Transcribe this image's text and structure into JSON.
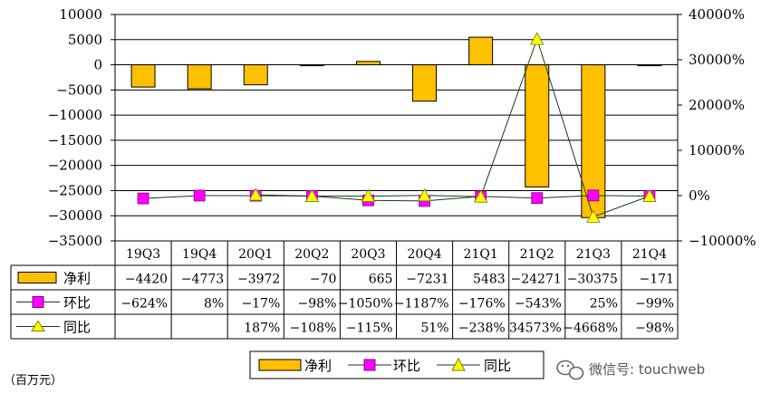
{
  "chart_data": {
    "type": "bar",
    "categories": [
      "19Q3",
      "19Q4",
      "20Q1",
      "20Q2",
      "20Q3",
      "20Q4",
      "21Q1",
      "21Q2",
      "21Q3",
      "21Q4"
    ],
    "series": [
      {
        "name": "净利",
        "kind": "bar",
        "axis": "left",
        "values": [
          -4420,
          -4773,
          -3972,
          -70,
          665,
          -7231,
          5483,
          -24271,
          -30375,
          -171
        ],
        "labels": [
          "-4420",
          "-4773",
          "-3972",
          "-70",
          "665",
          "-7231",
          "5483",
          "-24271",
          "-30375",
          "-171"
        ],
        "color": "#FFC000"
      },
      {
        "name": "环比",
        "kind": "line",
        "axis": "right",
        "values": [
          -624,
          8,
          -17,
          -98,
          -1050,
          -1187,
          -176,
          -543,
          25,
          -99
        ],
        "labels": [
          "-624%",
          "8%",
          "-17%",
          "-98%",
          "-1050%",
          "-1187%",
          "-176%",
          "-543%",
          "25%",
          "-99%"
        ],
        "color": "#FF00FF",
        "marker": "square"
      },
      {
        "name": "同比",
        "kind": "line",
        "axis": "right",
        "values": [
          null,
          null,
          187,
          -108,
          -115,
          51,
          -238,
          34573,
          -4668,
          -98
        ],
        "labels": [
          "",
          "",
          "187%",
          "-108%",
          "-115%",
          "51%",
          "-238%",
          "34573%",
          "-4668%",
          "-98%"
        ],
        "color": "#FFFF00",
        "marker": "triangle"
      }
    ],
    "left_axis": {
      "ylim": [
        -35000,
        10000
      ],
      "ticks": [
        10000,
        5000,
        0,
        -5000,
        -10000,
        -15000,
        -20000,
        -25000,
        -30000,
        -35000
      ],
      "tick_labels": [
        "10000",
        "5000",
        "0",
        "-5000",
        "-10000",
        "-15000",
        "-20000",
        "-25000",
        "-30000",
        "-35000"
      ]
    },
    "right_axis": {
      "ylim": [
        -10000,
        40000
      ],
      "ticks": [
        40000,
        30000,
        20000,
        10000,
        0,
        -10000
      ],
      "tick_labels": [
        "40000%",
        "30000%",
        "20000%",
        "10000%",
        "0%",
        "-10000%"
      ]
    },
    "grid": true,
    "legend": "bottom",
    "unit_note": "（百万元）",
    "watermark": "微信号: touchweb"
  }
}
